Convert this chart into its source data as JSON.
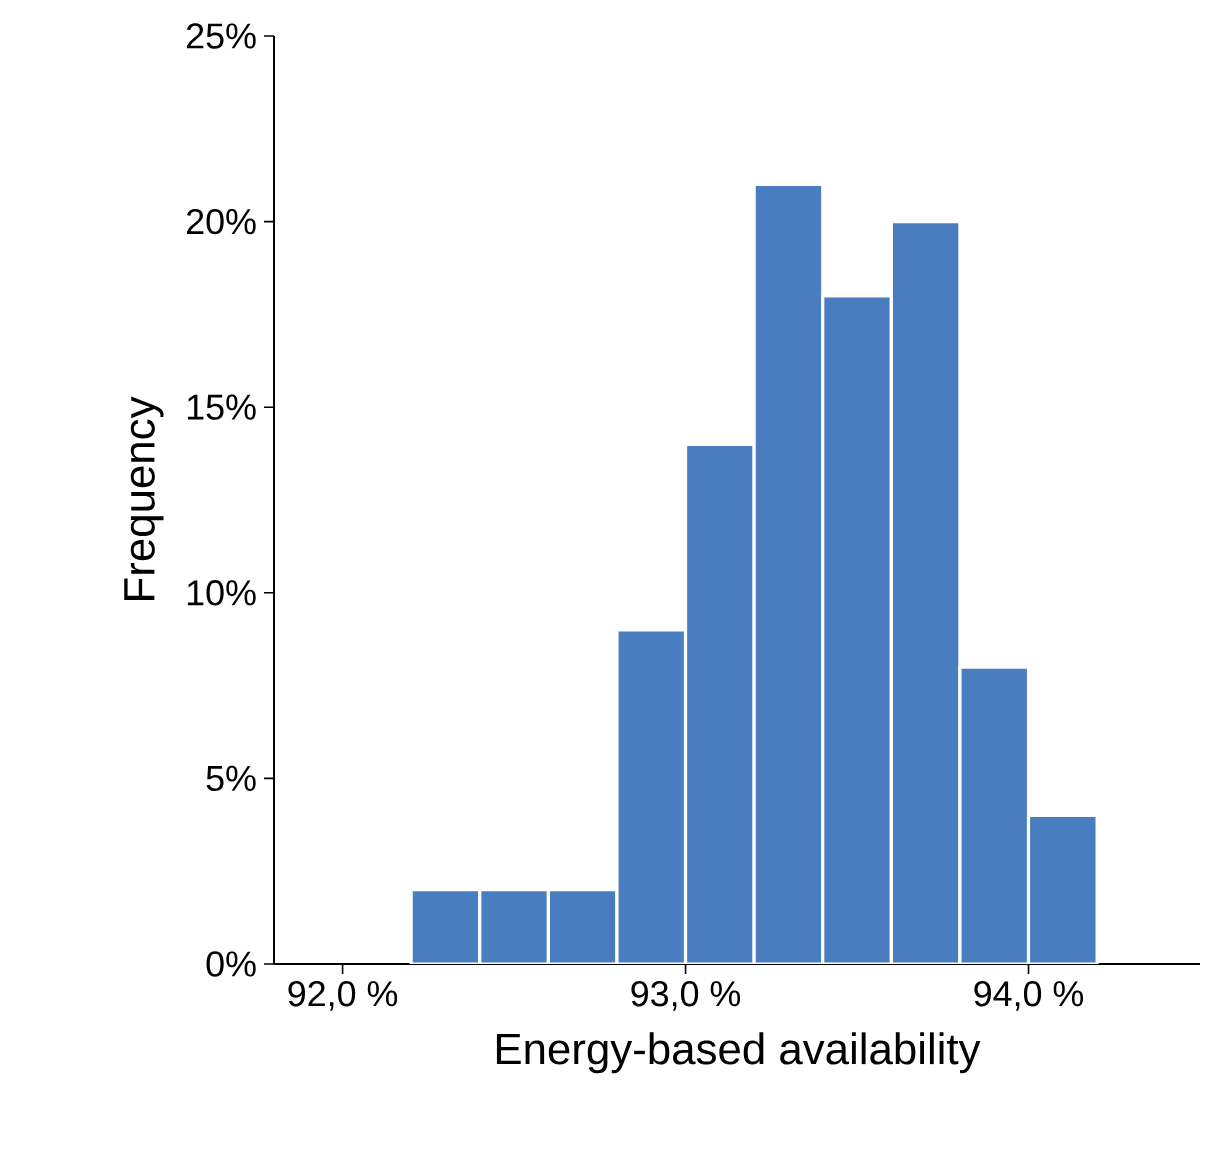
{
  "chart_data": {
    "type": "histogram",
    "xlabel": "Energy-based availability",
    "ylabel": "Frequency",
    "bins": [
      92.2,
      92.4,
      92.6,
      92.8,
      93.0,
      93.2,
      93.4,
      93.6,
      93.8,
      94.0,
      94.2
    ],
    "values": [
      2,
      2,
      2,
      9,
      14,
      21,
      18,
      20,
      8,
      4
    ],
    "color": "#4a7dbf",
    "xlim": [
      91.8,
      94.5
    ],
    "ylim": [
      0,
      25
    ],
    "xticks": [
      {
        "value": 92,
        "label": "92,0 %"
      },
      {
        "value": 93,
        "label": "93,0 %"
      },
      {
        "value": 94,
        "label": "94,0 %"
      }
    ],
    "yticks": [
      {
        "value": 0,
        "label": "0%"
      },
      {
        "value": 5,
        "label": "5%"
      },
      {
        "value": 10,
        "label": "10%"
      },
      {
        "value": 15,
        "label": "15%"
      },
      {
        "value": 20,
        "label": "20%"
      },
      {
        "value": 25,
        "label": "25%"
      }
    ],
    "grid": false
  }
}
